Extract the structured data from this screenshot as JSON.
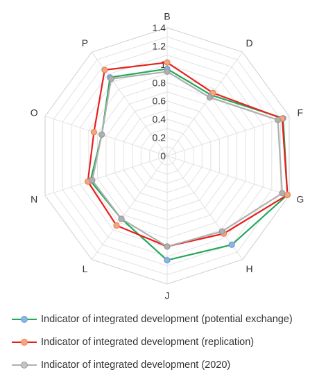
{
  "chart_data": {
    "type": "radar",
    "categories": [
      "B",
      "D",
      "F",
      "G",
      "H",
      "J",
      "L",
      "N",
      "O",
      "P"
    ],
    "r_ticks": [
      "0",
      "0.2",
      "0.4",
      "0.6",
      "0.8",
      "1",
      "1.2",
      "1.4"
    ],
    "rlim": [
      0,
      1.4
    ],
    "grid": true,
    "legend_position": "bottom",
    "series": [
      {
        "name": "Indicator of integrated development (potential exchange)",
        "color": "#22a85a",
        "marker_color": "#8db4e2",
        "values": [
          0.95,
          0.82,
          1.33,
          1.38,
          1.2,
          1.14,
          0.85,
          0.88,
          0.75,
          1.06
        ]
      },
      {
        "name": "Indicator of integrated development (replication)",
        "color": "#e8201c",
        "marker_color": "#f4a582",
        "values": [
          1.02,
          0.85,
          1.32,
          1.38,
          1.05,
          0.99,
          0.94,
          0.91,
          0.84,
          1.16
        ]
      },
      {
        "name": "Indicator of integrated development (2020)",
        "color": "#b0b0b0",
        "marker_color": "#b0b0b0",
        "values": [
          0.92,
          0.79,
          1.27,
          1.32,
          1.02,
          0.99,
          0.85,
          0.86,
          0.75,
          1.04
        ]
      }
    ]
  }
}
